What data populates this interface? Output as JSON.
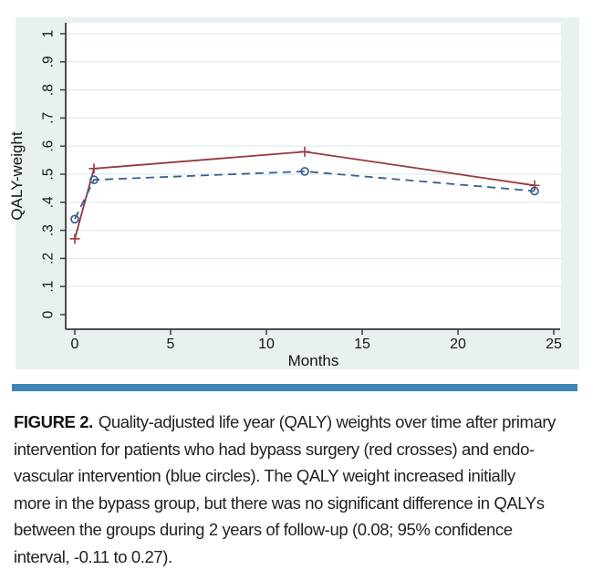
{
  "figure": {
    "divider_color": "#3e87ba",
    "caption": {
      "label": "FIGURE 2.",
      "lines": [
        "Quality-adjusted life year (QALY) weights over time after primary",
        "intervention for patients who had bypass surgery (red crosses) and endo-",
        "vascular intervention (blue circles). The QALY weight increased initially",
        "more in the bypass group, but there was no significant difference in QALYs",
        "between the groups during 2 years of follow-up (0.08; 95% confidence",
        "interval, -0.11 to 0.27)."
      ]
    }
  },
  "chart_data": {
    "type": "line",
    "title": "",
    "xlabel": "Months",
    "ylabel": "QALY-weight",
    "x_ticks": [
      0,
      5,
      10,
      15,
      20,
      25
    ],
    "y_ticks": [
      "0",
      ".1",
      ".2",
      ".3",
      ".4",
      ".5",
      ".6",
      ".7",
      ".8",
      ".9",
      "1"
    ],
    "xlim": [
      0,
      25.4
    ],
    "ylim": [
      0,
      1
    ],
    "grid": true,
    "legend": "none (series identified in caption)",
    "background": "#e9f0f2",
    "plot_background": "#ffffff",
    "gridline_color": "#dce9ed",
    "axis_color": "#4f4f4f",
    "tick_color": "#3a3a3a",
    "text_color": "#141414",
    "series": [
      {
        "name": "Bypass surgery (red crosses)",
        "color": "#96393c",
        "line": "solid",
        "marker": "plus",
        "x": [
          0,
          1,
          12,
          24
        ],
        "y": [
          0.27,
          0.52,
          0.58,
          0.46
        ]
      },
      {
        "name": "Endovascular intervention (blue circles)",
        "color": "#38608f",
        "line": "dashed",
        "marker": "circle",
        "x": [
          0,
          1,
          12,
          24
        ],
        "y": [
          0.34,
          0.48,
          0.51,
          0.44
        ]
      }
    ]
  }
}
